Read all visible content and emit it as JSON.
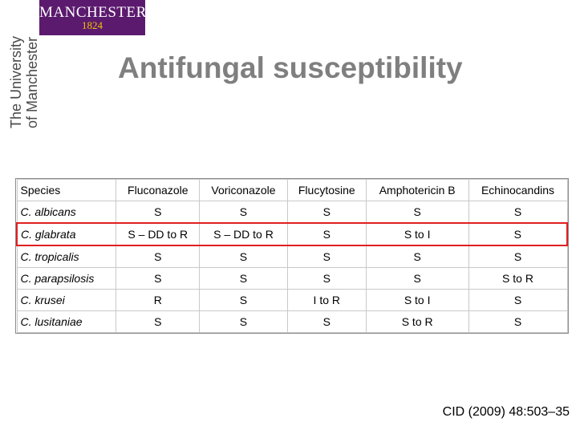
{
  "logo": {
    "name": "MANCHESTER",
    "year": "1824"
  },
  "university_line1": "The University",
  "university_line2": "of Manchester",
  "title": "Antifungal susceptibility",
  "table": {
    "headers": [
      "Species",
      "Fluconazole",
      "Voriconazole",
      "Flucytosine",
      "Amphotericin B",
      "Echinocandins"
    ],
    "rows": [
      [
        "C. albicans",
        "S",
        "S",
        "S",
        "S",
        "S"
      ],
      [
        "C. glabrata",
        "S – DD to R",
        "S – DD to R",
        "S",
        "S to I",
        "S"
      ],
      [
        "C. tropicalis",
        "S",
        "S",
        "S",
        "S",
        "S"
      ],
      [
        "C. parapsilosis",
        "S",
        "S",
        "S",
        "S",
        "S to R"
      ],
      [
        "C. krusei",
        "R",
        "S",
        "I to R",
        "S to I",
        "S"
      ],
      [
        "C. lusitaniae",
        "S",
        "S",
        "S",
        "S to R",
        "S"
      ]
    ],
    "highlight_color": "#e02020"
  },
  "citation": "CID (2009) 48:503–35",
  "colors": {
    "logo_bg": "#5b1a6e",
    "logo_year": "#f2c200",
    "title": "#7f7f7f"
  }
}
